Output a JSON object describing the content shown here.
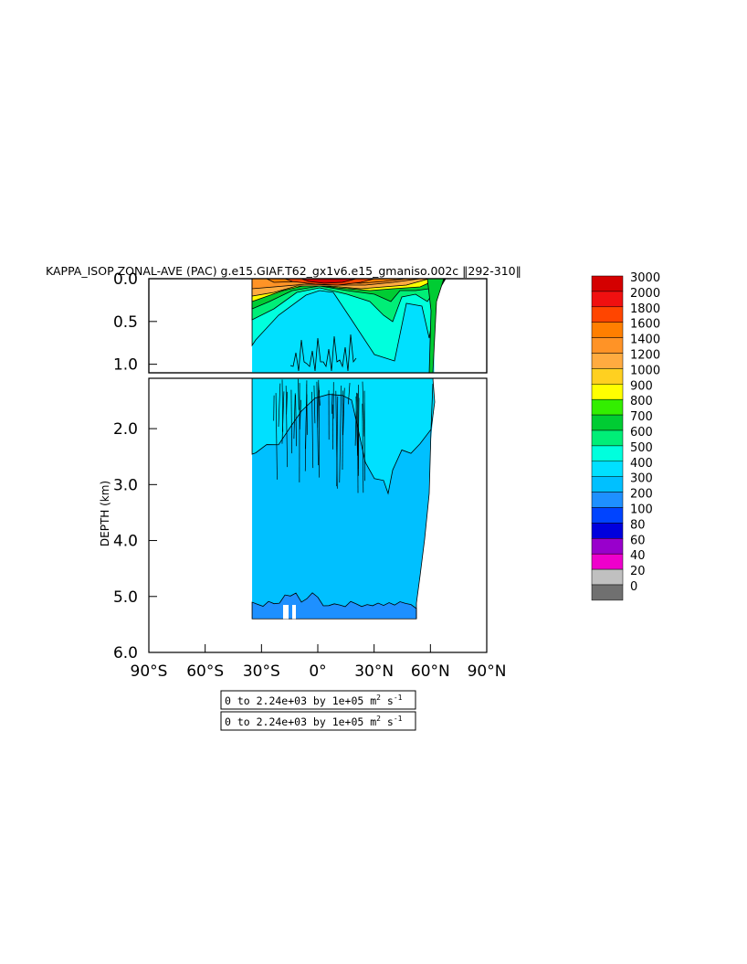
{
  "chart_data": {
    "type": "heatmap",
    "title": "KAPPA_ISOP ZONAL-AVE (PAC) g.e15.GIAF.T62_gx1v6.e15_gmaniso.002c ‖292-310‖",
    "ylabel": "DEPTH (km)",
    "xlabel": "",
    "x_ticks": [
      "90°S",
      "60°S",
      "30°S",
      "0°",
      "30°N",
      "60°N",
      "90°N"
    ],
    "x_tick_values": [
      -90,
      -60,
      -30,
      0,
      30,
      60,
      90
    ],
    "xlim": [
      -90,
      90
    ],
    "y_ticks_top": [
      "0.0",
      "0.5",
      "1.0"
    ],
    "y_tick_values_top": [
      0.0,
      0.5,
      1.0
    ],
    "ylim_top": [
      0,
      1.1
    ],
    "y_ticks_bottom": [
      "2.0",
      "3.0",
      "4.0",
      "5.0",
      "6.0"
    ],
    "y_tick_values_bottom": [
      2.0,
      3.0,
      4.0,
      5.0,
      6.0
    ],
    "ylim_bottom": [
      1.1,
      6.0
    ],
    "colorbar": {
      "labels": [
        "3000",
        "2000",
        "1800",
        "1600",
        "1400",
        "1200",
        "1000",
        "900",
        "800",
        "700",
        "600",
        "500",
        "400",
        "300",
        "200",
        "100",
        "80",
        "60",
        "40",
        "20",
        "0"
      ],
      "colors": [
        "#d40000",
        "#f01010",
        "#ff4500",
        "#ff7f00",
        "#ff9326",
        "#ffab40",
        "#ffd020",
        "#ffff00",
        "#33ee00",
        "#00cc33",
        "#00ee77",
        "#00ffdd",
        "#00e0ff",
        "#00c0ff",
        "#1e90ff",
        "#0044ff",
        "#0000dd",
        "#9900cc",
        "#ee00cc",
        "#c0c0c0",
        "#707070"
      ]
    },
    "info_boxes": [
      {
        "main": "0 to 2.24e+03 by 1e+05 m",
        "sup1": "2",
        "mid": " s",
        "sup2": "-1"
      },
      {
        "main": "0 to 2.24e+03 by 1e+05 m",
        "sup1": "2",
        "mid": " s",
        "sup2": "-1"
      }
    ],
    "field_lat_range": [
      -35,
      62
    ],
    "bottom_depth_km": 5.4,
    "grid": false,
    "legend_position": "right"
  }
}
